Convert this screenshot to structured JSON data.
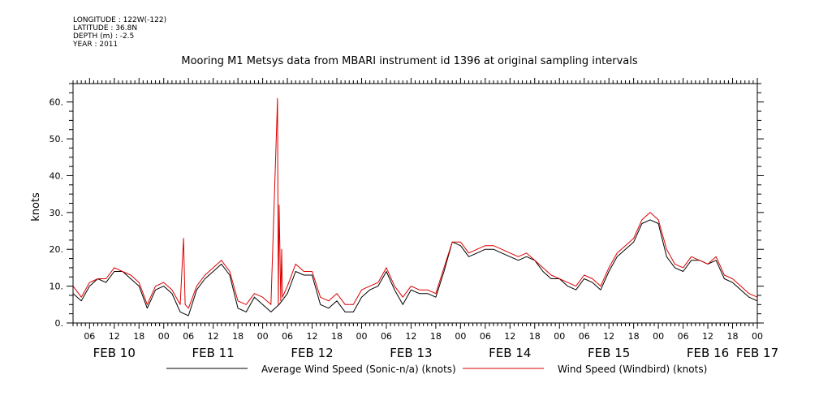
{
  "meta": {
    "longitude": "LONGITUDE : 122W(-122)",
    "latitude": "LATITUDE : 36.8N",
    "depth": "DEPTH (m) : -2.5",
    "year": "YEAR : 2011"
  },
  "chart_data": {
    "type": "line",
    "title": "Mooring M1 Metsys data from MBARI instrument id 1396 at original sampling intervals",
    "ylabel": "knots",
    "xlabel": "",
    "ylim": [
      0,
      65
    ],
    "xlim": [
      2,
      168
    ],
    "yticks": [
      "0.",
      "10.",
      "20.",
      "30.",
      "40.",
      "50.",
      "60."
    ],
    "ytick_values": [
      0,
      10,
      20,
      30,
      40,
      50,
      60
    ],
    "hour_ticks": [
      "06",
      "12",
      "18",
      "00",
      "06",
      "12",
      "18",
      "00",
      "06",
      "12",
      "18",
      "00",
      "06",
      "12",
      "18",
      "00",
      "06",
      "12",
      "18",
      "00",
      "06",
      "12",
      "18",
      "00",
      "06",
      "12",
      "18",
      "00"
    ],
    "hour_tick_values": [
      6,
      12,
      18,
      24,
      30,
      36,
      42,
      48,
      54,
      60,
      66,
      72,
      78,
      84,
      90,
      96,
      102,
      108,
      114,
      120,
      126,
      132,
      138,
      144,
      150,
      156,
      162,
      168
    ],
    "day_labels": [
      "FEB 10",
      "FEB 11",
      "FEB 12",
      "FEB 13",
      "FEB 14",
      "FEB 15",
      "FEB 16",
      "FEB 17"
    ],
    "day_label_values": [
      12,
      36,
      60,
      84,
      108,
      132,
      156,
      168
    ],
    "x_units": "hours since FEB 10 00:00",
    "grid": false,
    "legend_position": "bottom",
    "series": [
      {
        "name": "Average Wind Speed (Sonic-n/a) (knots)",
        "color": "#000000",
        "x": [
          2,
          4,
          6,
          8,
          10,
          12,
          14,
          16,
          18,
          20,
          22,
          24,
          26,
          28,
          30,
          32,
          34,
          36,
          38,
          40,
          42,
          44,
          46,
          48,
          50,
          52,
          54,
          56,
          58,
          60,
          62,
          64,
          66,
          68,
          70,
          72,
          74,
          76,
          78,
          80,
          82,
          84,
          86,
          88,
          90,
          92,
          94,
          96,
          98,
          100,
          102,
          104,
          106,
          108,
          110,
          112,
          114,
          116,
          118,
          120,
          122,
          124,
          126,
          128,
          130,
          132,
          134,
          136,
          138,
          140,
          142,
          144,
          146,
          148,
          150,
          152,
          154,
          156,
          158,
          160,
          162,
          164,
          166,
          168
        ],
        "y": [
          8,
          6,
          10,
          12,
          11,
          14,
          14,
          12,
          10,
          4,
          9,
          10,
          8,
          3,
          2,
          9,
          12,
          14,
          16,
          13,
          4,
          3,
          7,
          5,
          3,
          5,
          8,
          14,
          13,
          13,
          5,
          4,
          6,
          3,
          3,
          7,
          9,
          10,
          14,
          9,
          5,
          9,
          8,
          8,
          7,
          14,
          22,
          21,
          18,
          19,
          20,
          20,
          19,
          18,
          17,
          18,
          17,
          14,
          12,
          12,
          10,
          9,
          12,
          11,
          9,
          14,
          18,
          20,
          22,
          27,
          28,
          27,
          18,
          15,
          14,
          17,
          17,
          16,
          17,
          12,
          11,
          9,
          7,
          6
        ]
      },
      {
        "name": "Wind Speed (Windbird) (knots)",
        "color": "#dd0000",
        "x": [
          2,
          4,
          6,
          8,
          10,
          12,
          14,
          16,
          18,
          20,
          22,
          24,
          26,
          28,
          28.8,
          29.2,
          30,
          32,
          34,
          36,
          38,
          40,
          42,
          44,
          46,
          48,
          50,
          51.6,
          51.8,
          52,
          52.4,
          52.6,
          52.8,
          54,
          56,
          58,
          60,
          62,
          64,
          66,
          68,
          70,
          72,
          74,
          76,
          78,
          80,
          82,
          84,
          86,
          88,
          90,
          92,
          94,
          96,
          98,
          100,
          102,
          104,
          106,
          108,
          110,
          112,
          114,
          116,
          118,
          120,
          122,
          124,
          126,
          128,
          130,
          132,
          134,
          136,
          138,
          140,
          142,
          144,
          146,
          148,
          150,
          152,
          154,
          156,
          158,
          160,
          162,
          164,
          166,
          168
        ],
        "y": [
          10,
          7,
          11,
          12,
          12,
          15,
          14,
          13,
          11,
          5,
          10,
          11,
          9,
          5,
          23,
          5,
          4,
          10,
          13,
          15,
          17,
          14,
          6,
          5,
          8,
          7,
          5,
          61,
          5,
          32,
          6,
          20,
          7,
          10,
          16,
          14,
          14,
          7,
          6,
          8,
          5,
          5,
          9,
          10,
          11,
          15,
          10,
          7,
          10,
          9,
          9,
          8,
          15,
          22,
          22,
          19,
          20,
          21,
          21,
          20,
          19,
          18,
          19,
          17,
          15,
          13,
          12,
          11,
          10,
          13,
          12,
          10,
          15,
          19,
          21,
          23,
          28,
          30,
          28,
          20,
          16,
          15,
          18,
          17,
          16,
          18,
          13,
          12,
          10,
          8,
          7
        ]
      }
    ]
  }
}
